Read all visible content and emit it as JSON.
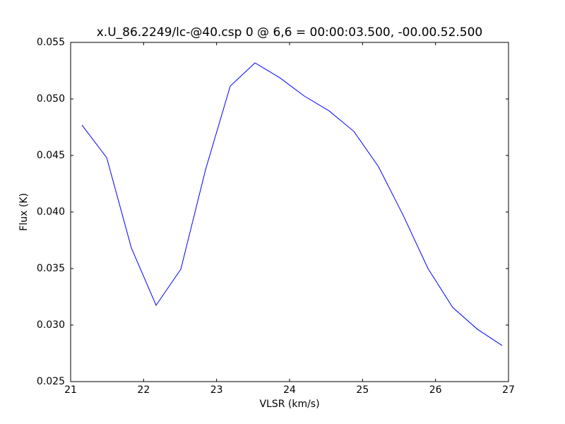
{
  "chart_data": {
    "type": "line",
    "title": "x.U_86.2249/lc-@40.csp 0 @ 6,6 = 00:00:03.500, -00.00.52.500",
    "x_label": "VLSR (km/s)",
    "y_label": "Flux (K)",
    "x": [
      21.155,
      21.494,
      21.833,
      22.171,
      22.51,
      22.849,
      23.187,
      23.526,
      23.865,
      24.203,
      24.542,
      24.881,
      25.219,
      25.558,
      25.897,
      26.235,
      26.574,
      26.913
    ],
    "series": [
      {
        "color": "#0000ff",
        "values": [
          0.04769,
          0.04481,
          0.03681,
          0.03175,
          0.03494,
          0.04375,
          0.05113,
          0.05319,
          0.05188,
          0.05025,
          0.04894,
          0.04713,
          0.044,
          0.03969,
          0.035,
          0.03156,
          0.02963,
          0.02819
        ]
      }
    ],
    "xlim": [
      21,
      27
    ],
    "xticks": [
      21,
      22,
      23,
      24,
      25,
      26,
      27
    ],
    "ylim": [
      0.025,
      0.055
    ],
    "yticks": [
      0.025,
      {
        "value": 0.03,
        "label": "0.030"
      },
      0.035,
      {
        "value": 0.04,
        "label": "0.040"
      },
      0.045,
      {
        "value": 0.05,
        "label": "0.050"
      },
      0.055
    ],
    "grid": false
  }
}
